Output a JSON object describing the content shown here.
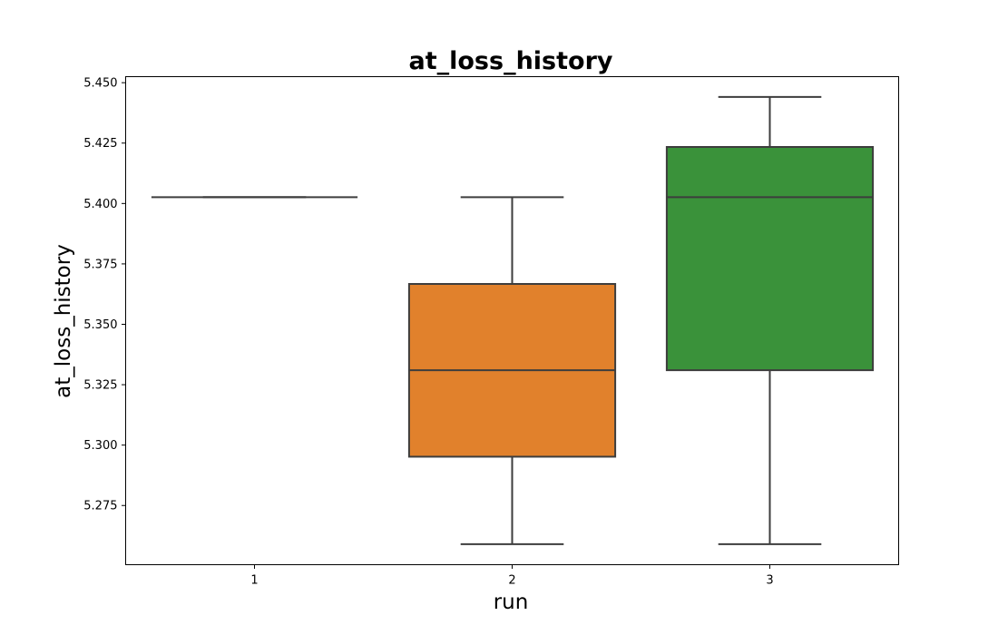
{
  "chart_data": {
    "type": "box",
    "title": "at_loss_history",
    "xlabel": "run",
    "ylabel": "at_loss_history",
    "categories": [
      "1",
      "2",
      "3"
    ],
    "ylim": [
      5.2505,
      5.4525
    ],
    "yticks": [
      5.275,
      5.3,
      5.325,
      5.35,
      5.375,
      5.4,
      5.425,
      5.45
    ],
    "ytick_labels": [
      "5.275",
      "5.300",
      "5.325",
      "5.350",
      "5.375",
      "5.400",
      "5.425",
      "5.450"
    ],
    "boxes": [
      {
        "category": "1",
        "whisker_low": 5.4026,
        "q1": 5.4026,
        "median": 5.4026,
        "q3": 5.4026,
        "whisker_high": 5.4026,
        "color": "#3274a1"
      },
      {
        "category": "2",
        "whisker_low": 5.259,
        "q1": 5.2952,
        "median": 5.331,
        "q3": 5.3667,
        "whisker_high": 5.4026,
        "color": "#e1812c"
      },
      {
        "category": "3",
        "whisker_low": 5.259,
        "q1": 5.331,
        "median": 5.4026,
        "q3": 5.4234,
        "whisker_high": 5.4441,
        "color": "#3a923a"
      }
    ],
    "line_color": "#3d3d3d",
    "grid": false,
    "legend": "none"
  }
}
